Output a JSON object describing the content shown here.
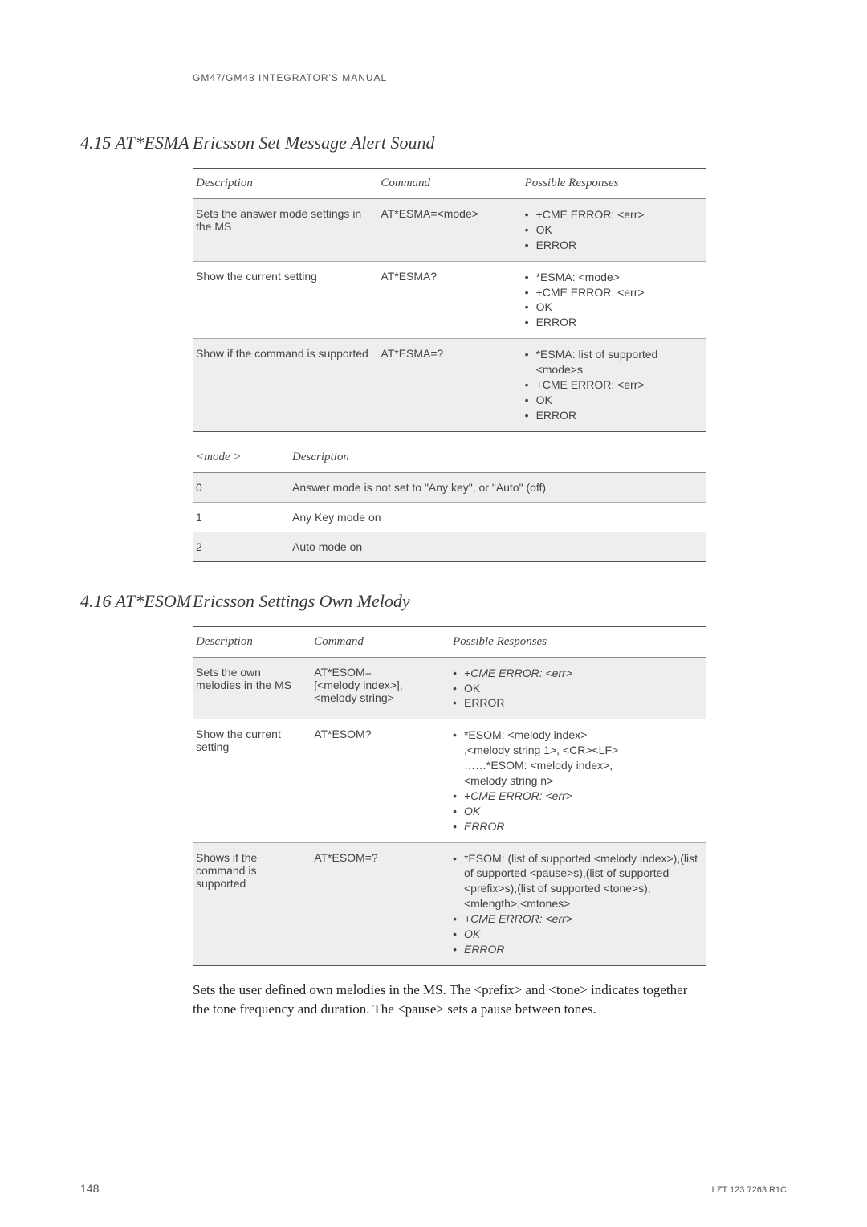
{
  "header": {
    "text": "GM47/GM48 INTEGRATOR'S MANUAL"
  },
  "section1": {
    "num": "4.15 AT*ESMA",
    "title": "Ericsson Set Message Alert Sound",
    "table1": {
      "headers": [
        "Description",
        "Command",
        "Possible Responses"
      ],
      "rows": [
        {
          "desc": "Sets the answer mode settings in the MS",
          "cmd": "AT*ESMA=<mode>",
          "resp": [
            "+CME ERROR: <err>",
            "OK",
            "ERROR"
          ],
          "shade": true
        },
        {
          "desc": "Show the current setting",
          "cmd": "AT*ESMA?",
          "resp": [
            "*ESMA: <mode>",
            "+CME ERROR: <err>",
            "OK",
            "ERROR"
          ],
          "shade": false
        },
        {
          "desc": "Show if the command is supported",
          "cmd": "AT*ESMA=?",
          "resp": [
            "*ESMA: list of supported <mode>s",
            "+CME ERROR: <err>",
            "OK",
            "ERROR"
          ],
          "shade": true
        }
      ]
    },
    "table2": {
      "headers": [
        "<mode >",
        "Description"
      ],
      "rows": [
        {
          "c0": "0",
          "c1": "Answer mode is not set to \"Any key\", or \"Auto\" (off)",
          "shade": true
        },
        {
          "c0": "1",
          "c1": "Any Key mode on",
          "shade": false
        },
        {
          "c0": "2",
          "c1": "Auto mode on",
          "shade": true
        }
      ]
    }
  },
  "section2": {
    "num": "4.16 AT*ESOM",
    "title": "Ericsson Settings Own Melody",
    "table1": {
      "headers": [
        "Description",
        "Command",
        "Possible Responses"
      ],
      "rows": [
        {
          "desc": "Sets the own melodies in the MS",
          "cmd": "AT*ESOM=\n[<melody index>],\n<melody string>",
          "resp": [
            {
              "t": "+CME ERROR: <err>",
              "i": true
            },
            {
              "t": "OK",
              "i": false
            },
            {
              "t": "ERROR",
              "i": false
            }
          ],
          "shade": true
        },
        {
          "desc": "Show the current setting",
          "cmd": "AT*ESOM?",
          "resp": [
            {
              "t": "*ESOM: <melody index>\n,<melody string 1>, <CR><LF>\n……*ESOM: <melody index>,\n<melody string n>",
              "i": false
            },
            {
              "t": "+CME ERROR: <err>",
              "i": true
            },
            {
              "t": "OK",
              "i": true
            },
            {
              "t": "ERROR",
              "i": true
            }
          ],
          "shade": false
        },
        {
          "desc": "Shows if the command is supported",
          "cmd": "AT*ESOM=?",
          "resp": [
            {
              "t": "*ESOM: (list of supported <melody index>),(list of supported <pause>s),(list of supported <prefix>s),(list of supported <tone>s), <mlength>,<mtones>",
              "i": false
            },
            {
              "t": "+CME ERROR: <err>",
              "i": true
            },
            {
              "t": "OK",
              "i": true
            },
            {
              "t": "ERROR",
              "i": true
            }
          ],
          "shade": true
        }
      ]
    },
    "para": "Sets the user defined own melodies in the MS. The <prefix> and <tone> indicates together the tone frequency and duration. The <pause> sets a pause between tones."
  },
  "footer": {
    "page": "148",
    "doc": "LZT 123 7263 R1C"
  }
}
